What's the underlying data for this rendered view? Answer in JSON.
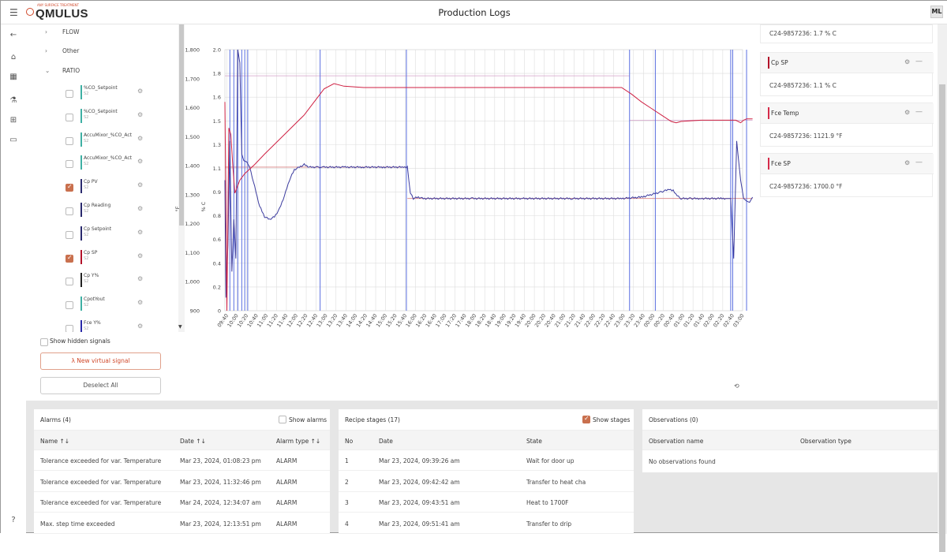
{
  "app": {
    "title": "Production Logs",
    "logo_text": "QMULUS",
    "logo_tagline": "ANY SURFACE TREATMENT",
    "avatar": "ML"
  },
  "nav": {
    "icons": [
      "menu-icon",
      "back-arrow-icon",
      "home-icon",
      "grid-icon",
      "flask-icon",
      "dashboard-add-icon",
      "monitor-icon",
      "help-icon"
    ]
  },
  "signals": {
    "groups": [
      {
        "label": "FLOW",
        "expanded": false
      },
      {
        "label": "Other",
        "expanded": false
      },
      {
        "label": "RATIO",
        "expanded": true
      }
    ],
    "items": [
      {
        "name": "%CO_Setpoint",
        "sub": "S2",
        "checked": false,
        "color": "#3fb0a4"
      },
      {
        "name": "%CO_Setpoint",
        "sub": "S2",
        "checked": false,
        "color": "#3fb0a4"
      },
      {
        "name": "AccuMixor_%CO_Act",
        "sub": "S2",
        "checked": false,
        "color": "#3fb0a4"
      },
      {
        "name": "AccuMixor_%CO_Act",
        "sub": "S2",
        "checked": false,
        "color": "#3fb0a4"
      },
      {
        "name": "Cp PV",
        "sub": "S2",
        "checked": true,
        "color": "#2a2a6e"
      },
      {
        "name": "Cp Reading",
        "sub": "S2",
        "checked": false,
        "color": "#2a2a6e"
      },
      {
        "name": "Cp Setpoint",
        "sub": "S2",
        "checked": false,
        "color": "#2a2a6e"
      },
      {
        "name": "Cp SP",
        "sub": "S2",
        "checked": true,
        "color": "#b3122a"
      },
      {
        "name": "Cp Y%",
        "sub": "S2",
        "checked": false,
        "color": "#222222"
      },
      {
        "name": "CpotYout",
        "sub": "S2",
        "checked": false,
        "color": "#3fb0a4"
      },
      {
        "name": "Fce Y%",
        "sub": "S2",
        "checked": false,
        "color": "#2a2aa8"
      }
    ],
    "show_hidden_label": "Show hidden signals",
    "new_virtual_label": "λ  New virtual signal",
    "deselect_label": "Deselect All"
  },
  "chart_data": {
    "type": "line",
    "x_ticks": [
      "09:40",
      "10:00",
      "10:20",
      "10:40",
      "11:00",
      "11:20",
      "11:40",
      "12:00",
      "12:20",
      "12:40",
      "13:00",
      "13:20",
      "13:40",
      "14:00",
      "14:20",
      "14:40",
      "15:00",
      "15:20",
      "15:40",
      "16:00",
      "16:20",
      "16:40",
      "17:00",
      "17:20",
      "17:40",
      "18:00",
      "18:20",
      "18:40",
      "19:00",
      "19:20",
      "19:40",
      "20:00",
      "20:20",
      "20:40",
      "21:00",
      "21:20",
      "21:40",
      "22:00",
      "22:20",
      "22:40",
      "23:00",
      "23:20",
      "23:40",
      "00:00",
      "00:20",
      "00:40",
      "01:00",
      "01:20",
      "01:40",
      "02:00",
      "02:20",
      "02:40",
      "03:00"
    ],
    "y_left": {
      "label": "°F",
      "ticks": [
        "900",
        "1,000",
        "1,100",
        "1,200",
        "1,300",
        "1,400",
        "1,500",
        "1,600",
        "1,700",
        "1,800"
      ],
      "ylim": [
        900,
        1800
      ]
    },
    "y_right": {
      "label": "% C",
      "ticks": [
        "0",
        "0.2",
        "0.4",
        "0.6",
        "0.8",
        "0.9",
        "1.1",
        "1.3",
        "1.5",
        "1.6",
        "1.8",
        "2.0"
      ],
      "ylim": [
        0,
        2.0
      ]
    },
    "series": [
      {
        "name": "Cp PV",
        "color": "#3b3b9e",
        "x": [
          0,
          0.1,
          0.3,
          0.5,
          0.7,
          0.9,
          1.1,
          1.3,
          1.5,
          1.7,
          1.9,
          2.2,
          2.5,
          3.0,
          3.5,
          4.0,
          4.5,
          5.0,
          5.5,
          6.0,
          6.5,
          7.0,
          7.5,
          8.0,
          8.5,
          9.0,
          9.4,
          9.7,
          10.0,
          12,
          14,
          16,
          18,
          18.4,
          18.7,
          19.0,
          19.5,
          20,
          25,
          30,
          35,
          38,
          40,
          42,
          42.5,
          43,
          44,
          44.8,
          45.2,
          45.6,
          46,
          47,
          48,
          50,
          51,
          51.3,
          51.6,
          52,
          52.3,
          52.6,
          52.9,
          53.2
        ],
        "y": [
          1.0,
          0.1,
          0.5,
          1.3,
          0.3,
          0.7,
          0.4,
          2.0,
          1.9,
          1.2,
          1.15,
          1.14,
          1.1,
          0.95,
          0.8,
          0.72,
          0.7,
          0.72,
          0.78,
          0.88,
          1.0,
          1.08,
          1.1,
          1.12,
          1.1,
          1.1,
          1.1,
          1.1,
          1.1,
          1.1,
          1.1,
          1.1,
          1.1,
          1.1,
          0.9,
          0.86,
          0.87,
          0.86,
          0.86,
          0.86,
          0.86,
          0.86,
          0.86,
          0.87,
          0.88,
          0.89,
          0.91,
          0.93,
          0.92,
          0.88,
          0.86,
          0.86,
          0.86,
          0.86,
          0.86,
          0.4,
          1.3,
          1.0,
          0.86,
          0.84,
          0.83,
          0.87
        ]
      },
      {
        "name": "Cp SP",
        "color": "#cf2143",
        "x": [
          0,
          0.2,
          0.4,
          0.6,
          0.8,
          1.0,
          1.5,
          2.0,
          3.0,
          4.0,
          6.0,
          8.0,
          9.0,
          10.0,
          11.0,
          12,
          14,
          20,
          30,
          40,
          41,
          42,
          43,
          44,
          45,
          45.5,
          46,
          48,
          50,
          51,
          51.5,
          52,
          52.3,
          52.6,
          53.2
        ],
        "y": [
          1.6,
          0.0,
          1.4,
          1.35,
          1.1,
          0.9,
          1.0,
          1.05,
          1.12,
          1.2,
          1.35,
          1.5,
          1.6,
          1.7,
          1.74,
          1.72,
          1.71,
          1.71,
          1.71,
          1.71,
          1.66,
          1.6,
          1.55,
          1.5,
          1.45,
          1.44,
          1.45,
          1.46,
          1.46,
          1.46,
          1.46,
          1.44,
          1.46,
          1.47,
          1.47
        ]
      }
    ],
    "annotations": {
      "blue_verticals": [
        0.5,
        0.9,
        1.3,
        1.7,
        2.0,
        2.3,
        9.6,
        18.3,
        40.8,
        43.4,
        51.0,
        51.2,
        52.6
      ],
      "ref_lines": [
        {
          "y": 1.1,
          "from": 0,
          "to": 18.4,
          "color": "#d98080"
        },
        {
          "y": 1.8,
          "from": 0,
          "to": 40.8,
          "color": "#d4a0c8"
        },
        {
          "y": 0.86,
          "from": 18.4,
          "to": 53.2,
          "color": "#d98080"
        },
        {
          "y": 1.46,
          "from": 40.8,
          "to": 53.2,
          "color": "#d4a0c8"
        }
      ]
    }
  },
  "legend_cards": [
    {
      "name": "",
      "value": "C24-9857236: 1.7 % C",
      "color": ""
    },
    {
      "name": "Cp SP",
      "value": "C24-9857236: 1.1 % C",
      "color": "#b3122a"
    },
    {
      "name": "Fce Temp",
      "value": "C24-9857236: 1121.9 °F",
      "color": "#d62b4a"
    },
    {
      "name": "Fce SP",
      "value": "C24-9857236: 1700.0 °F",
      "color": "#d62b4a"
    }
  ],
  "alarms": {
    "title": "Alarms (4)",
    "toggle_label": "Show alarms",
    "toggle_on": false,
    "columns": [
      "Name ↑↓",
      "Date ↑↓",
      "Alarm type ↑↓"
    ],
    "rows": [
      [
        "Tolerance exceeded for var. Temperature",
        "Mar 23, 2024, 01:08:23 pm",
        "ALARM"
      ],
      [
        "Tolerance exceeded for var. Temperature",
        "Mar 23, 2024, 11:32:46 pm",
        "ALARM"
      ],
      [
        "Tolerance exceeded for var. Temperature",
        "Mar 24, 2024, 12:34:07 am",
        "ALARM"
      ],
      [
        "Max. step time exceeded",
        "Mar 23, 2024, 12:13:51 pm",
        "ALARM"
      ]
    ]
  },
  "recipe": {
    "title": "Recipe stages (17)",
    "toggle_label": "Show stages",
    "toggle_on": true,
    "columns": [
      "No",
      "Date",
      "State"
    ],
    "rows": [
      [
        "1",
        "Mar 23, 2024, 09:39:26 am",
        "Wait for door up"
      ],
      [
        "2",
        "Mar 23, 2024, 09:42:42 am",
        "Transfer to heat cha"
      ],
      [
        "3",
        "Mar 23, 2024, 09:43:51 am",
        "Heat to 1700F"
      ],
      [
        "4",
        "Mar 23, 2024, 09:51:41 am",
        "Transfer to drip"
      ]
    ]
  },
  "observations": {
    "title": "Observations (0)",
    "columns": [
      "Observation name",
      "Observation type"
    ],
    "empty": "No observations found"
  }
}
